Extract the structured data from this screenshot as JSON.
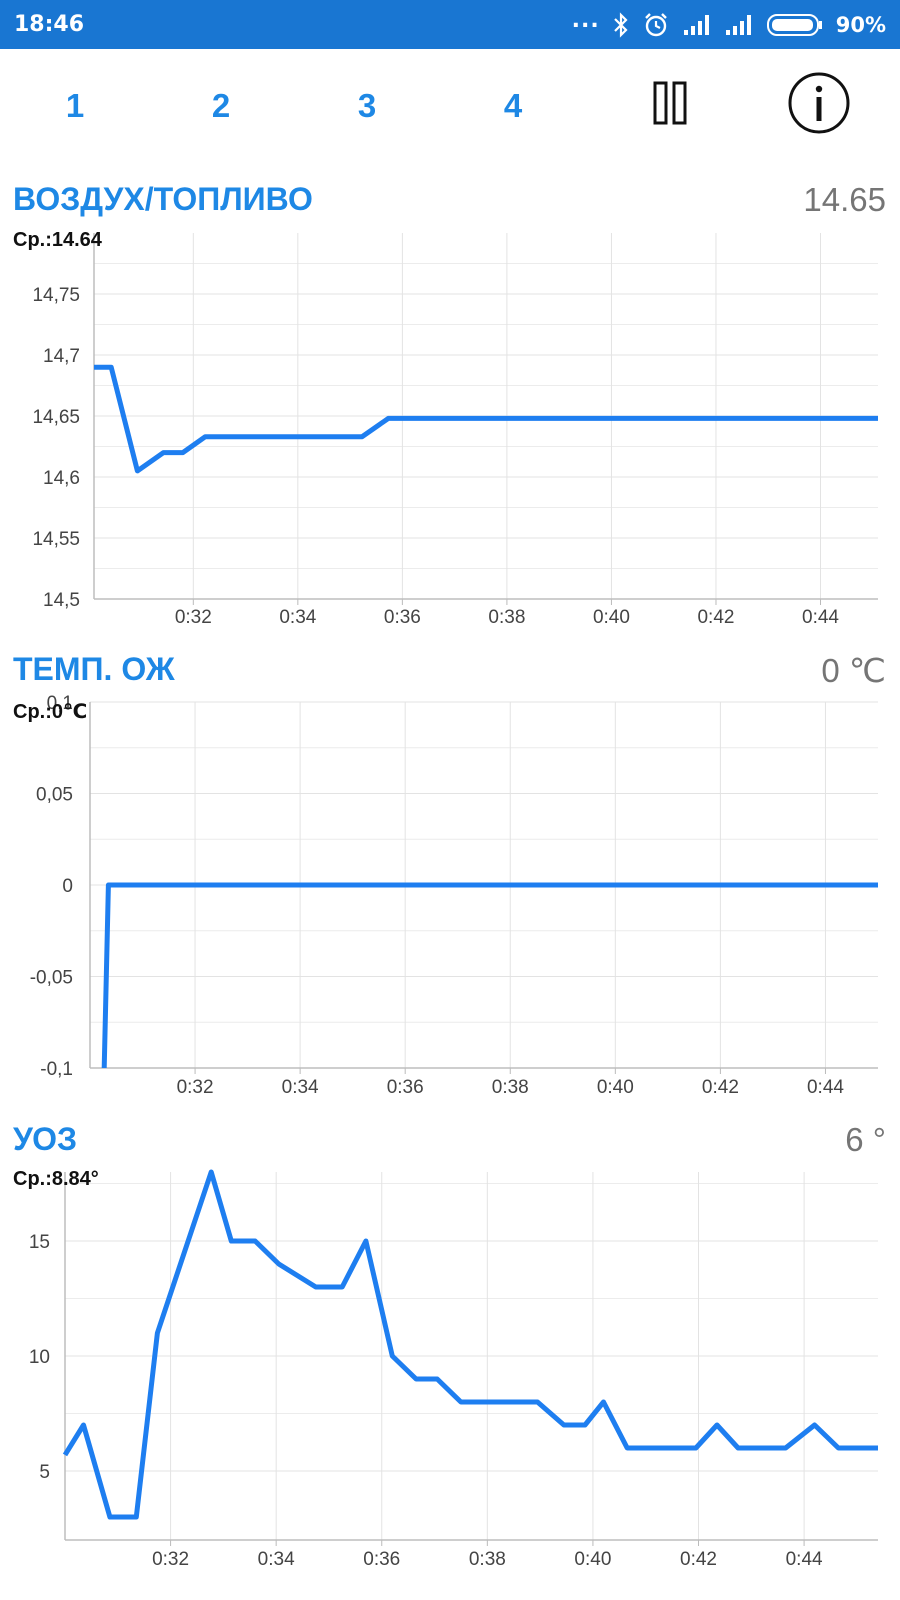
{
  "status_bar": {
    "time": "18:46",
    "dots": "...",
    "battery_text": "90%",
    "icons": [
      "bluetooth-icon",
      "alarm-icon",
      "signal-icon",
      "signal-icon",
      "battery-icon"
    ]
  },
  "tabs": [
    "1",
    "2",
    "3",
    "4"
  ],
  "toolbar_icons": [
    "pause-icon",
    "info-icon"
  ],
  "colors": {
    "accent": "#1e88e5",
    "line": "#1e7ef0",
    "status_bar": "#1976d2",
    "grid": "#e6e6e6",
    "value_gray": "#757575"
  },
  "sections": [
    {
      "title": "ВОЗДУХ/ТОПЛИВО",
      "value": "14.65",
      "average": "Ср.:14.64"
    },
    {
      "title": "ТЕМП. ОЖ",
      "value": "0  ℃",
      "average": "Ср.:0℃"
    },
    {
      "title": "УОЗ",
      "value": "6  °",
      "average": "Ср.:8.84°"
    }
  ],
  "chart_data": [
    {
      "type": "line",
      "title": "ВОЗДУХ/ТОПЛИВО",
      "xlim": [
        30.1,
        45.1
      ],
      "ylim": [
        14.5,
        14.8
      ],
      "x_ticks": [
        32,
        34,
        36,
        38,
        40,
        42,
        44
      ],
      "x_tick_labels": [
        "0:32",
        "0:34",
        "0:36",
        "0:38",
        "0:40",
        "0:42",
        "0:44"
      ],
      "y_ticks": [
        14.5,
        14.55,
        14.6,
        14.65,
        14.7,
        14.75
      ],
      "y_tick_labels": [
        "14,5",
        "14,55",
        "14,6",
        "14,65",
        "14,7",
        "14,75"
      ],
      "grid": true,
      "series": [
        {
          "x": [
            30.1,
            30.43,
            30.93,
            31.43,
            31.8,
            32.23,
            32.73,
            35.23,
            35.73,
            45.1
          ],
          "y": [
            14.69,
            14.69,
            14.605,
            14.62,
            14.62,
            14.633,
            14.633,
            14.633,
            14.648,
            14.648
          ]
        }
      ]
    },
    {
      "type": "line",
      "title": "ТЕМП. ОЖ",
      "xlim": [
        30.0,
        45.0
      ],
      "ylim": [
        -0.1,
        0.1
      ],
      "x_ticks": [
        32,
        34,
        36,
        38,
        40,
        42,
        44
      ],
      "x_tick_labels": [
        "0:32",
        "0:34",
        "0:36",
        "0:38",
        "0:40",
        "0:42",
        "0:44"
      ],
      "y_ticks": [
        -0.1,
        -0.05,
        0,
        0.05,
        0.1
      ],
      "y_tick_labels": [
        "-0,1",
        "-0,05",
        "0",
        "0,05",
        "0,1"
      ],
      "grid": true,
      "series": [
        {
          "x": [
            30.27,
            30.35,
            45.0
          ],
          "y": [
            -0.1,
            0,
            0
          ]
        }
      ]
    },
    {
      "type": "line",
      "title": "УОЗ",
      "xlim": [
        30.0,
        45.4
      ],
      "ylim": [
        2,
        18
      ],
      "x_ticks": [
        32,
        34,
        36,
        38,
        40,
        42,
        44
      ],
      "x_tick_labels": [
        "0:32",
        "0:34",
        "0:36",
        "0:38",
        "0:40",
        "0:42",
        "0:44"
      ],
      "y_ticks": [
        5,
        10,
        15
      ],
      "y_tick_labels": [
        "5",
        "10",
        "15"
      ],
      "grid": true,
      "series": [
        {
          "x": [
            30.0,
            30.35,
            30.85,
            31.35,
            31.75,
            32.77,
            33.15,
            33.6,
            34.05,
            34.75,
            35.25,
            35.7,
            36.2,
            36.65,
            37.05,
            37.5,
            38.05,
            38.5,
            38.95,
            39.45,
            39.85,
            40.2,
            40.65,
            41.0,
            41.45,
            41.95,
            42.35,
            42.75,
            43.2,
            43.65,
            44.2,
            44.65,
            45.4
          ],
          "y": [
            5.7,
            7,
            3,
            3,
            11,
            18,
            15,
            15,
            14,
            13,
            13,
            15,
            10,
            9,
            9,
            8,
            8,
            8,
            8,
            7,
            7,
            8,
            6,
            6,
            6,
            6,
            7,
            6,
            6,
            6,
            7,
            6,
            6
          ]
        }
      ]
    }
  ]
}
